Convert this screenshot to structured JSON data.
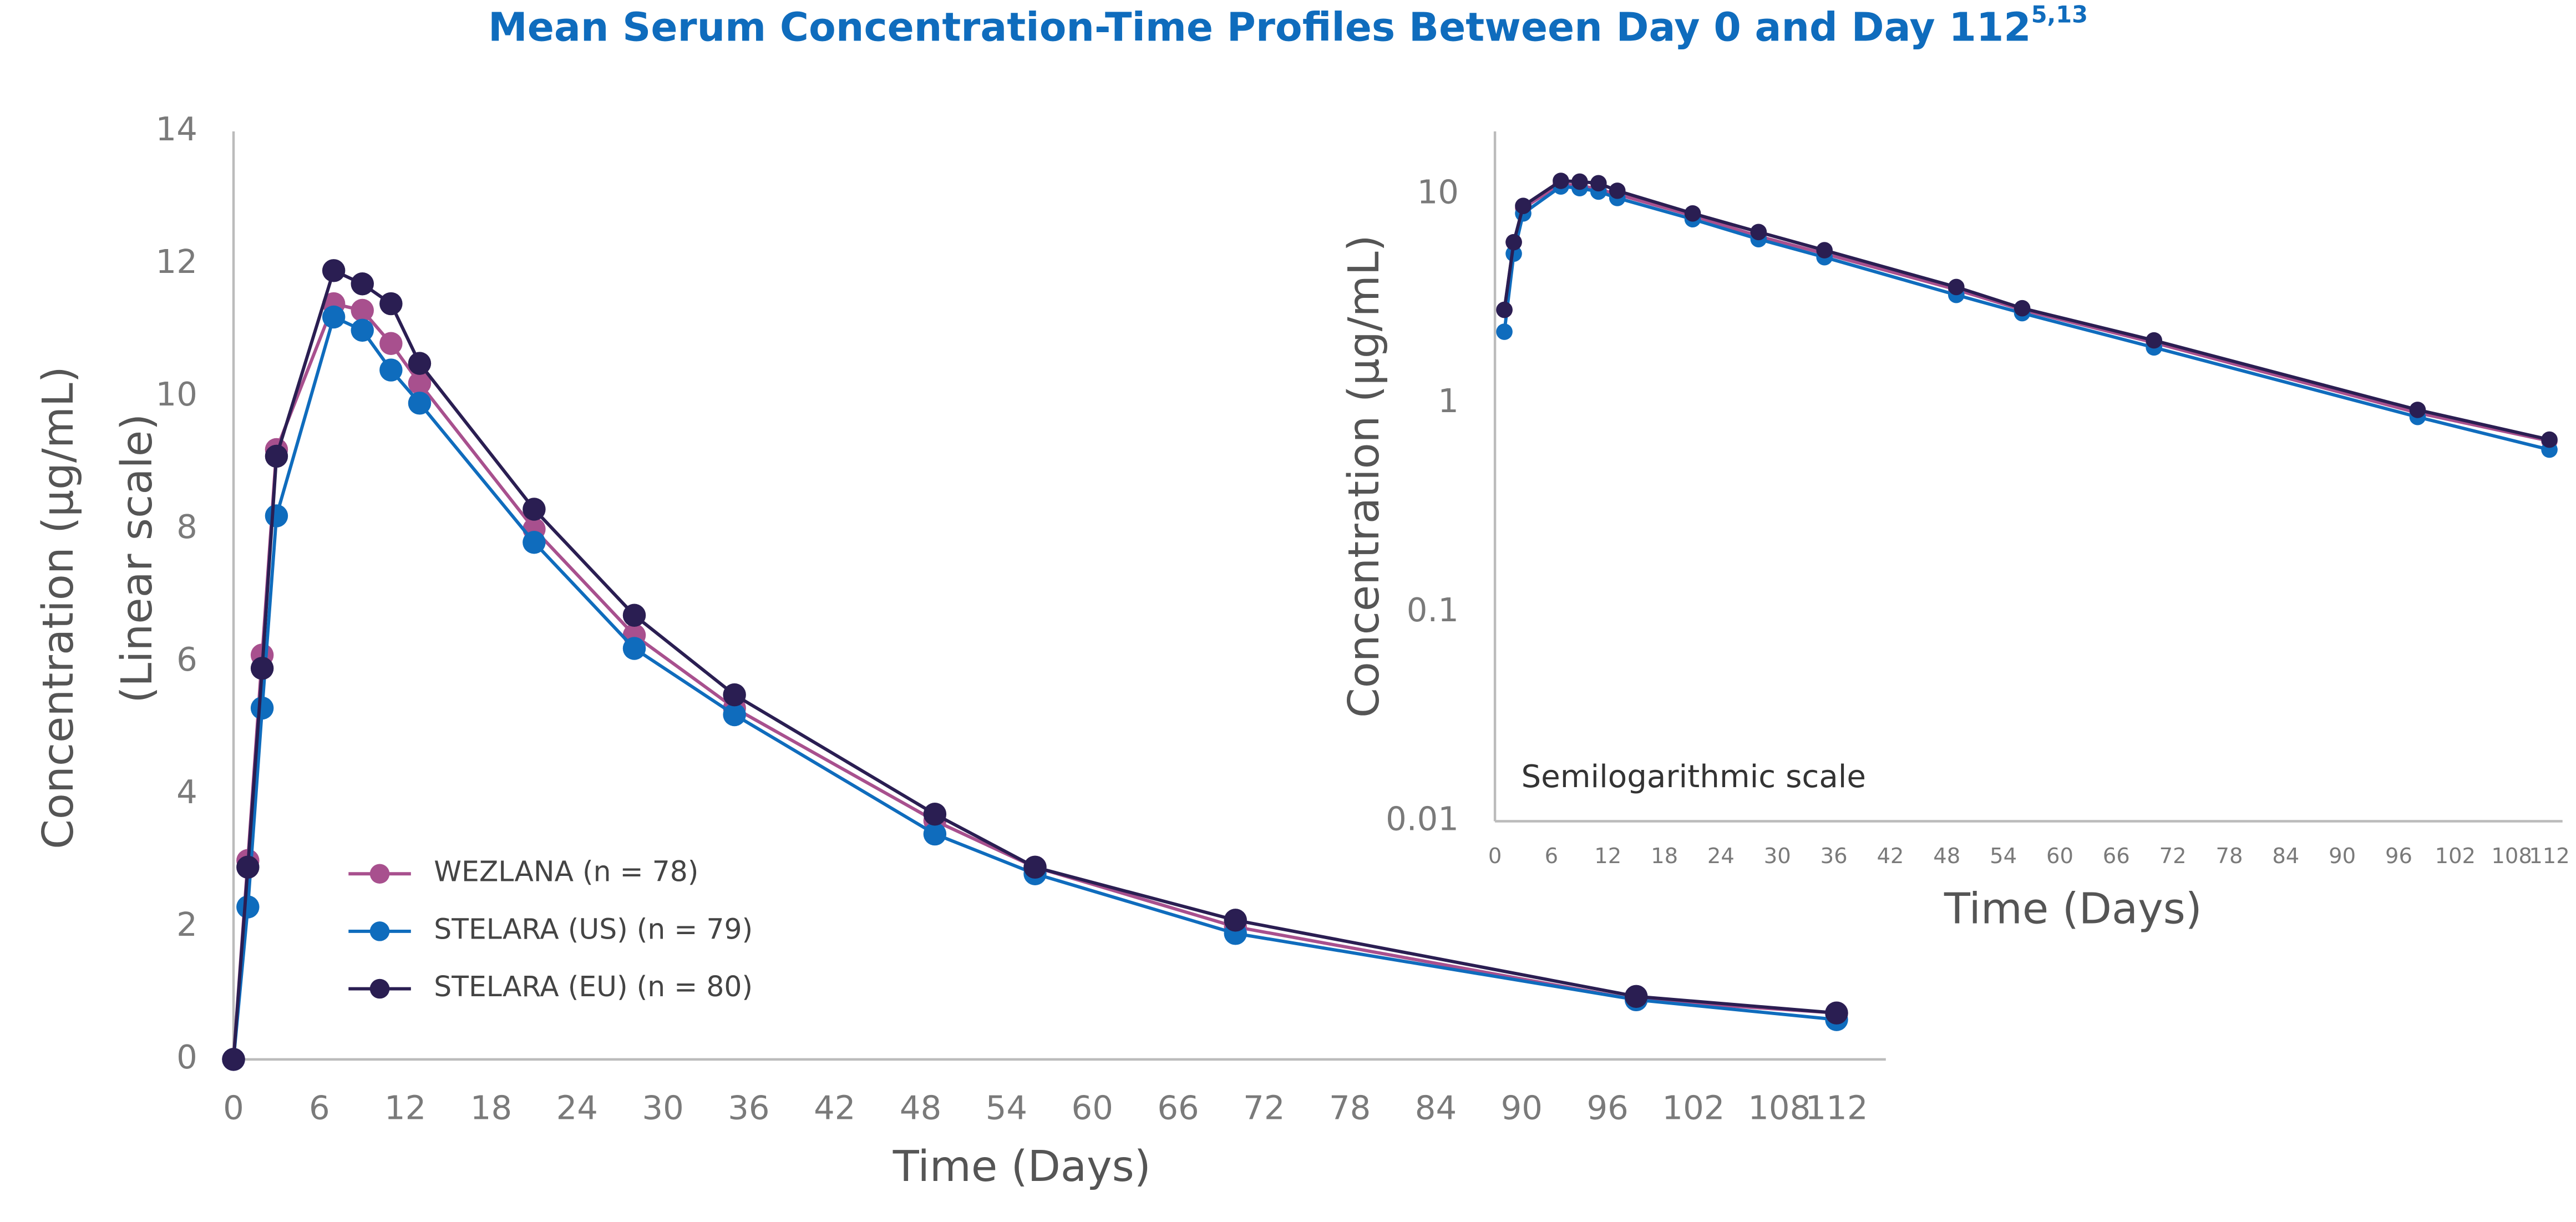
{
  "chart_data": [
    {
      "type": "line",
      "title": "Mean Serum Concentration-Time Profiles Between Day 0 and Day 112",
      "title_superscript": "5,13",
      "x_label": "Time (Days)",
      "y_label": [
        "Concentration (µg/mL)",
        "(Linear scale)"
      ],
      "x": [
        0,
        1,
        2,
        3,
        7,
        9,
        11,
        13,
        21,
        28,
        35,
        49,
        56,
        70,
        98,
        112
      ],
      "series": [
        {
          "name": "WEZLANA (n = 78)",
          "color": "#a8508e",
          "values": [
            0,
            3.0,
            6.1,
            9.2,
            11.4,
            11.3,
            10.8,
            10.2,
            8.0,
            6.4,
            5.3,
            3.6,
            2.9,
            2.0,
            0.9,
            0.7
          ]
        },
        {
          "name": "STELARA (US) (n = 79)",
          "color": "#0f6cbd",
          "values": [
            0,
            2.3,
            5.3,
            8.2,
            11.2,
            11.0,
            10.4,
            9.9,
            7.8,
            6.2,
            5.2,
            3.4,
            2.8,
            1.9,
            0.9,
            0.6
          ]
        },
        {
          "name": "STELARA (EU) (n = 80)",
          "color": "#2a1e52",
          "values": [
            0,
            2.9,
            5.9,
            9.1,
            11.9,
            11.7,
            11.4,
            10.5,
            8.3,
            6.7,
            5.5,
            3.7,
            2.9,
            2.1,
            0.95,
            0.7
          ]
        }
      ],
      "xlim": [
        0,
        112
      ],
      "xticks": [
        0,
        6,
        12,
        18,
        24,
        30,
        36,
        42,
        48,
        54,
        60,
        66,
        72,
        78,
        84,
        90,
        96,
        102,
        108,
        112
      ],
      "ylim": [
        0,
        14
      ],
      "yticks": [
        0,
        2,
        4,
        6,
        8,
        10,
        12,
        14
      ],
      "grid": false,
      "log_y": false
    },
    {
      "type": "line",
      "x_label": "Time (Days)",
      "y_label": [
        "Concentration (µg/mL)"
      ],
      "annotation": "Semilogarithmic scale",
      "x": [
        1,
        2,
        3,
        7,
        9,
        11,
        13,
        21,
        28,
        35,
        49,
        56,
        70,
        98,
        112
      ],
      "series": [
        {
          "color": "#a8508e",
          "values": [
            2.8,
            5.9,
            8.6,
            11.2,
            11.0,
            10.6,
            10.0,
            7.9,
            6.3,
            5.2,
            3.5,
            2.8,
            1.95,
            0.9,
            0.66
          ]
        },
        {
          "color": "#0f6cbd",
          "values": [
            2.2,
            5.2,
            8.1,
            10.9,
            10.7,
            10.3,
            9.6,
            7.6,
            6.1,
            5.0,
            3.3,
            2.7,
            1.85,
            0.86,
            0.6
          ]
        },
        {
          "color": "#2a1e52",
          "values": [
            2.8,
            5.9,
            8.8,
            11.6,
            11.5,
            11.3,
            10.4,
            8.1,
            6.6,
            5.4,
            3.6,
            2.85,
            2.0,
            0.93,
            0.67
          ]
        }
      ],
      "xlim": [
        0,
        112
      ],
      "xticks": [
        0,
        6,
        12,
        18,
        24,
        30,
        36,
        42,
        48,
        54,
        60,
        66,
        72,
        78,
        84,
        90,
        96,
        102,
        108,
        112
      ],
      "ylim": [
        0.01,
        20
      ],
      "yticks": [
        0.01,
        0.1,
        1,
        10
      ],
      "grid": false,
      "log_y": true
    }
  ]
}
